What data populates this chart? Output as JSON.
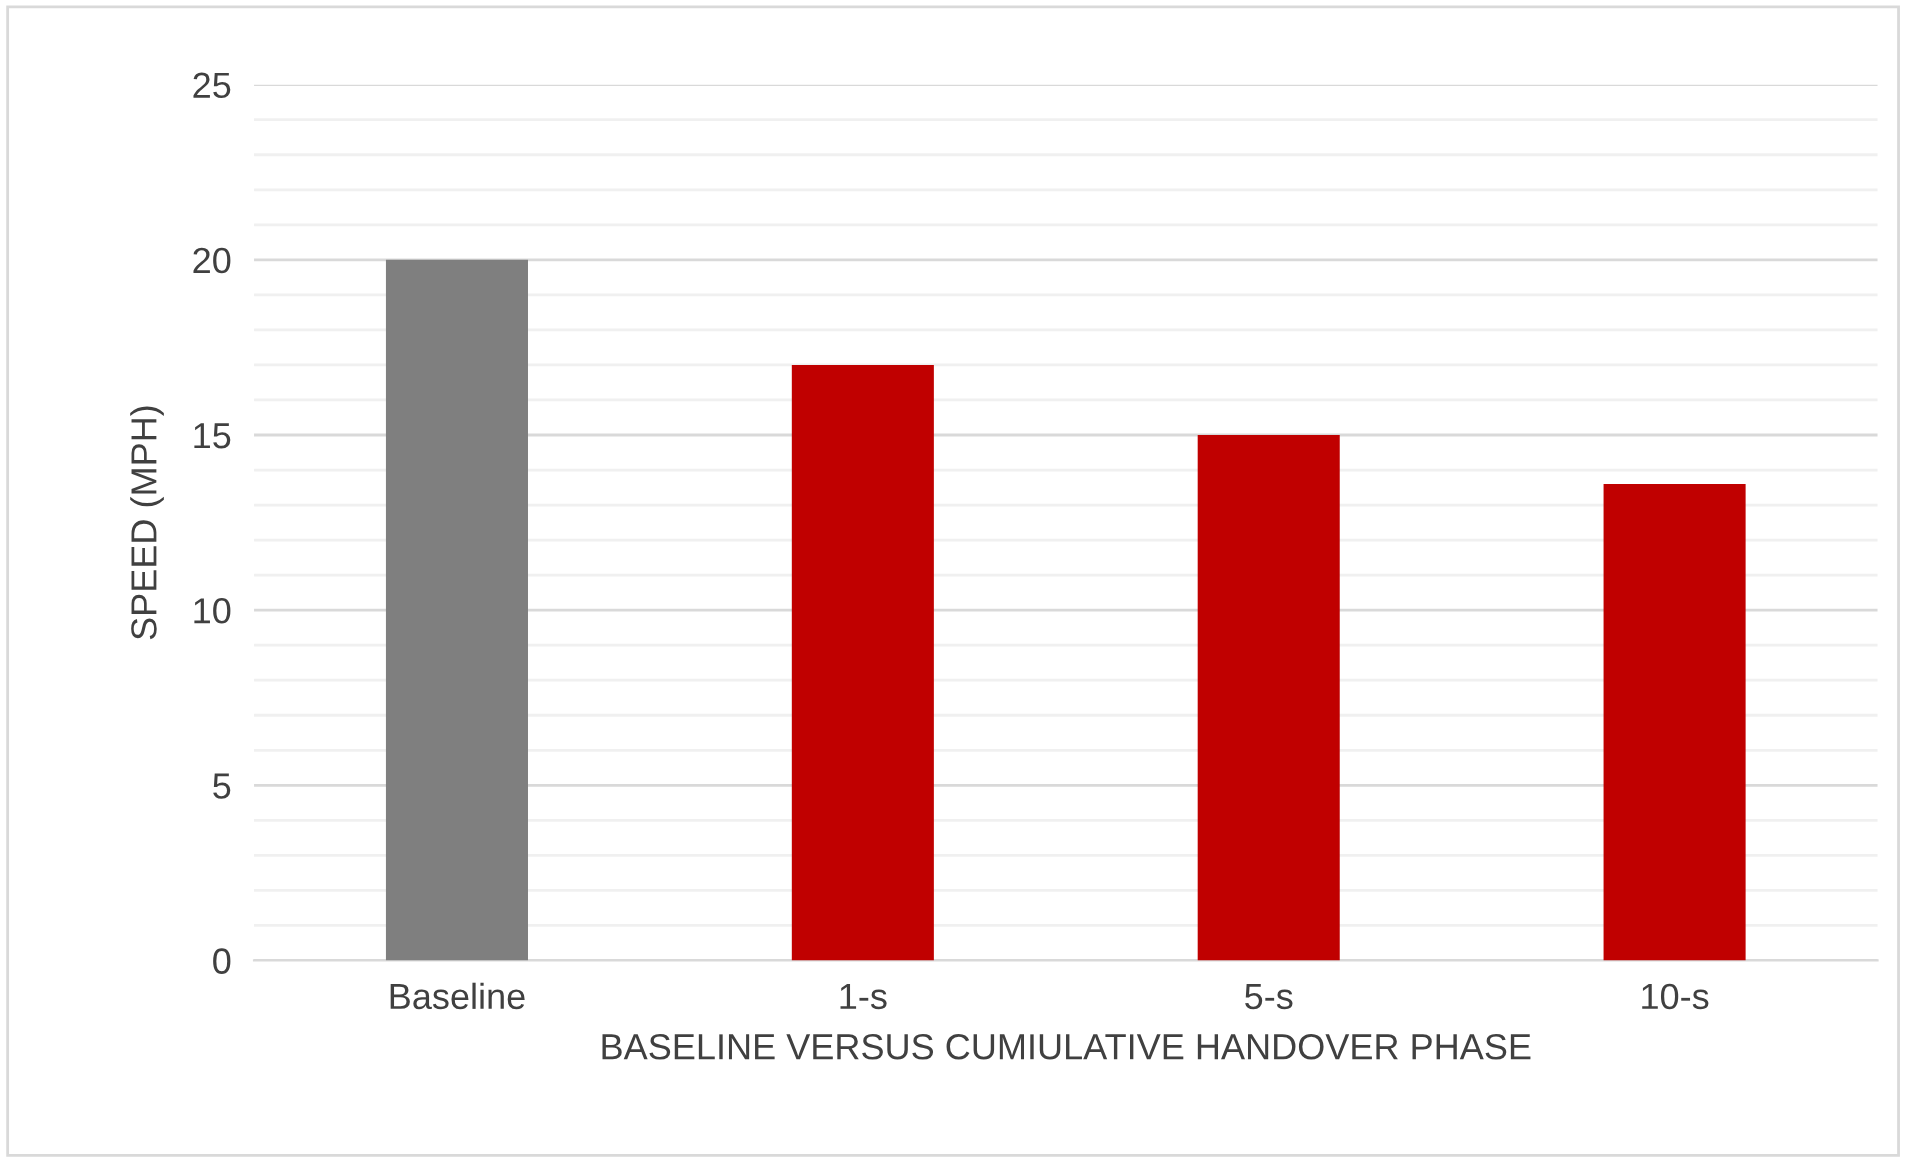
{
  "chart_data": {
    "type": "bar",
    "xlabel": "BASELINE VERSUS CUMIULATIVE HANDOVER PHASE",
    "ylabel": "SPEED (MPH)",
    "categories": [
      "Baseline",
      "1-s",
      "5-s",
      "10-s"
    ],
    "values": [
      20,
      17,
      15,
      13.6
    ],
    "colors": [
      "#7f7f7f",
      "#c00000",
      "#c00000",
      "#c00000"
    ],
    "ylim": [
      0,
      25
    ],
    "yticks": [
      0,
      {
        "value": 1,
        "label": null
      },
      {
        "value": 2,
        "label": null
      },
      {
        "value": 3,
        "label": null
      },
      {
        "value": 4,
        "label": null
      },
      5,
      {
        "value": 6,
        "label": null
      },
      {
        "value": 7,
        "label": null
      },
      {
        "value": 8,
        "label": null
      },
      {
        "value": 9,
        "label": null
      },
      10,
      {
        "value": 11,
        "label": null
      },
      {
        "value": 12,
        "label": null
      },
      {
        "value": 13,
        "label": null
      },
      {
        "value": 14,
        "label": null
      },
      15,
      {
        "value": 16,
        "label": null
      },
      {
        "value": 17,
        "label": null
      },
      {
        "value": 18,
        "label": null
      },
      {
        "value": 19,
        "label": null
      },
      20,
      {
        "value": 21,
        "label": null
      },
      {
        "value": 22,
        "label": null
      },
      {
        "value": 23,
        "label": null
      },
      {
        "value": 24,
        "label": null
      },
      25
    ],
    "grid": "y"
  }
}
